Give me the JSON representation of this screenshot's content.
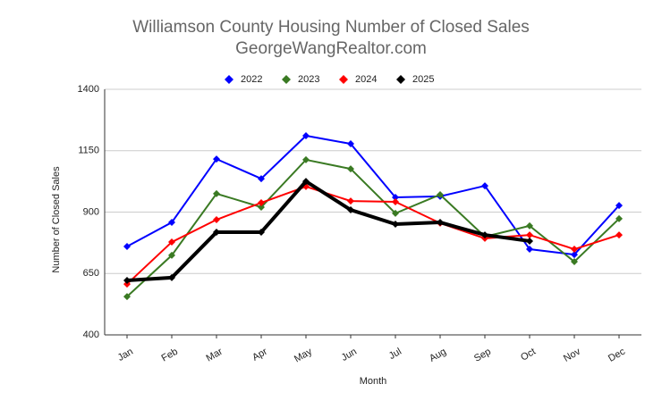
{
  "chart_data": {
    "type": "line",
    "title": "Williamson County Housing Number of Closed Sales",
    "subtitle": "GeorgeWangRealtor.com",
    "x_label": "Month",
    "y_label": "Number of Closed Sales",
    "categories": [
      "Jan",
      "Feb",
      "Mar",
      "Apr",
      "May",
      "Jun",
      "Jul",
      "Aug",
      "Sep",
      "Oct",
      "Nov",
      "Dec"
    ],
    "series": [
      {
        "name": "2022",
        "color": "#0000ff",
        "width": 2,
        "values": [
          760,
          858,
          1116,
          1036,
          1211,
          1178,
          960,
          964,
          1007,
          749,
          727,
          927
        ]
      },
      {
        "name": "2023",
        "color": "#3a7a23",
        "width": 2,
        "values": [
          556,
          724,
          975,
          920,
          1113,
          1076,
          895,
          971,
          800,
          844,
          698,
          873
        ]
      },
      {
        "name": "2024",
        "color": "#ff0000",
        "width": 2,
        "values": [
          607,
          778,
          869,
          938,
          1004,
          945,
          942,
          855,
          793,
          807,
          749,
          807
        ]
      },
      {
        "name": "2025",
        "color": "#000000",
        "width": 4,
        "values": [
          622,
          633,
          818,
          818,
          1025,
          909,
          851,
          858,
          807,
          782,
          null,
          null
        ]
      }
    ],
    "ylim": [
      400,
      1400
    ],
    "yticks": [
      400,
      650,
      900,
      1150,
      1400
    ],
    "grid": true,
    "legend": "top"
  }
}
